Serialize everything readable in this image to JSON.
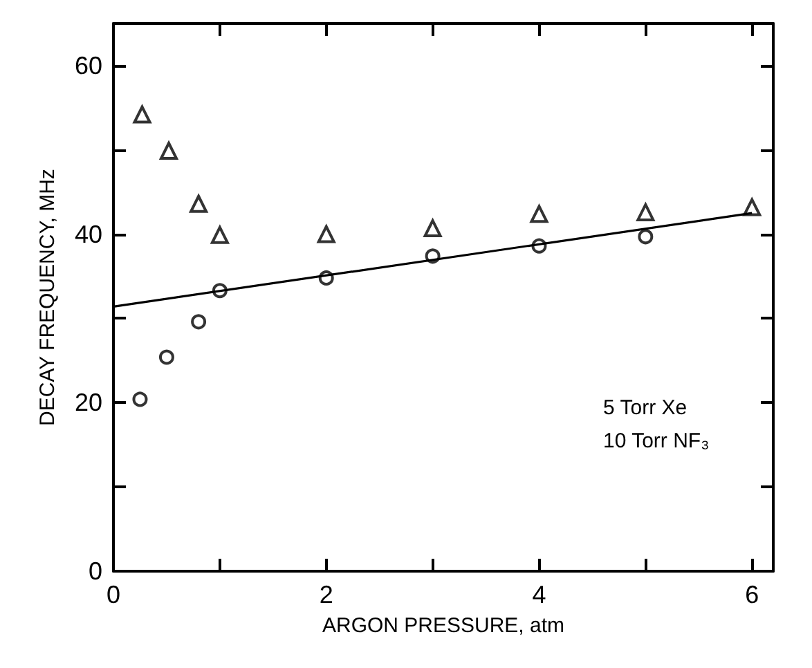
{
  "chart_data": {
    "type": "scatter",
    "xlabel": "ARGON PRESSURE, atm",
    "ylabel": "DECAY FREQUENCY, MHz",
    "xlim": [
      0,
      6.2
    ],
    "ylim": [
      0,
      65
    ],
    "xticks": [
      0,
      {
        "value": 1,
        "label": null
      },
      2,
      {
        "value": 3,
        "label": null
      },
      4,
      {
        "value": 5,
        "label": null
      },
      6
    ],
    "yticks": [
      0,
      {
        "value": 10,
        "label": null
      },
      20,
      {
        "value": 30,
        "label": null
      },
      40,
      {
        "value": 50,
        "label": null
      },
      60
    ],
    "grid": false,
    "annotations": [
      "5 Torr Xe\n10 Torr NF₃"
    ],
    "series": [
      {
        "marker": "triangle",
        "color": "#000000",
        "x": [
          0.27,
          0.52,
          0.8,
          1,
          2,
          3,
          4,
          5,
          6
        ],
        "values": [
          54.2,
          49.9,
          43.6,
          39.9,
          40,
          40.7,
          42.4,
          42.6,
          43.2
        ]
      },
      {
        "marker": "circle",
        "color": "#000000",
        "x": [
          0.25,
          0.5,
          0.8,
          1,
          2,
          3,
          4,
          5
        ],
        "values": [
          20.4,
          25.4,
          29.6,
          33.3,
          34.8,
          37.4,
          38.6,
          39.7
        ]
      },
      {
        "type": "line",
        "marker": "none",
        "line_style": "solid",
        "color": "#000000",
        "x": [
          0,
          6
        ],
        "values": [
          31.4,
          42.5
        ]
      }
    ]
  }
}
